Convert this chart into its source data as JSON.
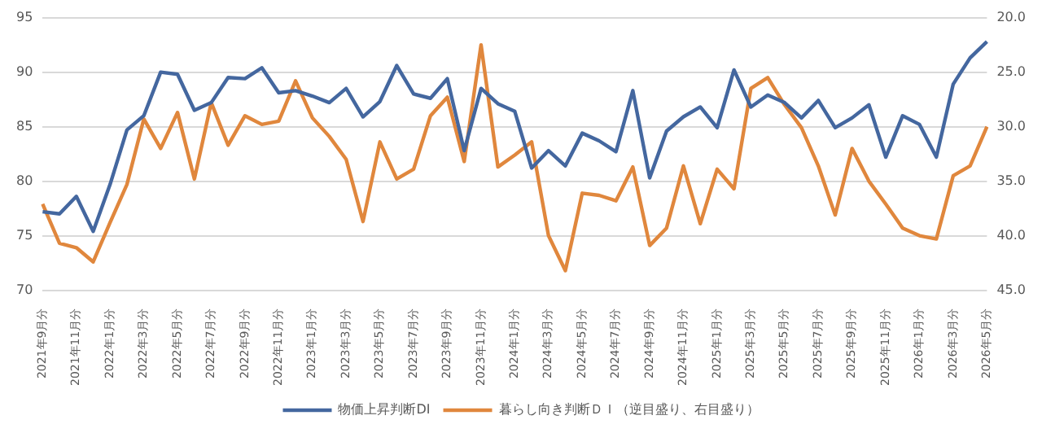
{
  "chart_data": {
    "type": "line",
    "categories": [
      "2021年9月分",
      null,
      "2021年11月分",
      null,
      "2022年1月分",
      null,
      "2022年3月分",
      null,
      "2022年5月分",
      null,
      "2022年7月分",
      null,
      "2022年9月分",
      null,
      "2022年11月分",
      null,
      "2023年1月分",
      null,
      "2023年3月分",
      null,
      "2023年5月分",
      null,
      "2023年7月分",
      null,
      "2023年9月分",
      null,
      "2023年11月分",
      null,
      "2024年1月分",
      null,
      "2024年3月分",
      null,
      "2024年5月分",
      null,
      "2024年7月分",
      null,
      "2024年9月分",
      null,
      "2024年11月分",
      null,
      "2025年1月分",
      null,
      "2025年3月分",
      null,
      "2025年5月分",
      null,
      "2025年7月分",
      null,
      "2025年9月分",
      null,
      "2025年11月分",
      null,
      "2026年1月分",
      null,
      "2026年3月分",
      null,
      "2026年5月分"
    ],
    "series": [
      {
        "name": "物価上昇判断DI",
        "color": "#44679f",
        "values": [
          77.2,
          77.0,
          78.6,
          75.4,
          79.7,
          84.7,
          86.0,
          90.0,
          89.8,
          86.5,
          87.2,
          89.5,
          89.4,
          90.4,
          88.1,
          88.3,
          87.8,
          87.2,
          88.5,
          85.9,
          87.3,
          90.6,
          88.0,
          87.6,
          89.4,
          82.8,
          88.5,
          87.1,
          86.4,
          81.2,
          82.8,
          81.4,
          84.4,
          83.7,
          82.7,
          88.3,
          80.3,
          84.6,
          85.9,
          86.8,
          84.9,
          90.2,
          86.8,
          87.9,
          87.2,
          85.8,
          87.4,
          84.9,
          85.8,
          87.0,
          82.2,
          86.0,
          85.2,
          82.2,
          88.9,
          91.3,
          92.8
        ]
      },
      {
        "name": "暮らし向き判断ＤＩ（逆目盛り、右目盛り）",
        "color": "#e0873d",
        "axis": "y2",
        "values": [
          37.1,
          40.7,
          41.1,
          42.4,
          38.8,
          35.3,
          29.3,
          32.0,
          28.7,
          34.8,
          27.8,
          31.7,
          29.0,
          29.8,
          29.5,
          25.8,
          29.2,
          30.9,
          33.0,
          38.7,
          31.4,
          34.8,
          33.9,
          29.0,
          27.3,
          33.2,
          22.5,
          33.7,
          32.6,
          31.4,
          40.0,
          43.2,
          36.1,
          36.3,
          36.8,
          33.7,
          40.9,
          39.3,
          33.6,
          38.9,
          33.9,
          35.7,
          26.5,
          25.5,
          28.0,
          30.1,
          33.6,
          38.1,
          32.0,
          35.0,
          37.1,
          39.3,
          40.0,
          40.3,
          34.5,
          33.6,
          30.0
        ]
      }
    ],
    "ylim": [
      70,
      95
    ],
    "yticks": [
      70,
      75,
      80,
      85,
      90,
      95
    ],
    "y2lim": [
      45,
      20
    ],
    "y2ticks": [
      {
        "value": 20,
        "label": "20.0"
      },
      {
        "value": 25,
        "label": "25.0"
      },
      {
        "value": 30,
        "label": "30.0"
      },
      {
        "value": 35,
        "label": "35.0"
      },
      {
        "value": 40,
        "label": "40.0"
      },
      {
        "value": 45,
        "label": "45.0"
      }
    ],
    "grid": "y",
    "legend": "bottom",
    "marker": "none",
    "line_style": "solid"
  }
}
